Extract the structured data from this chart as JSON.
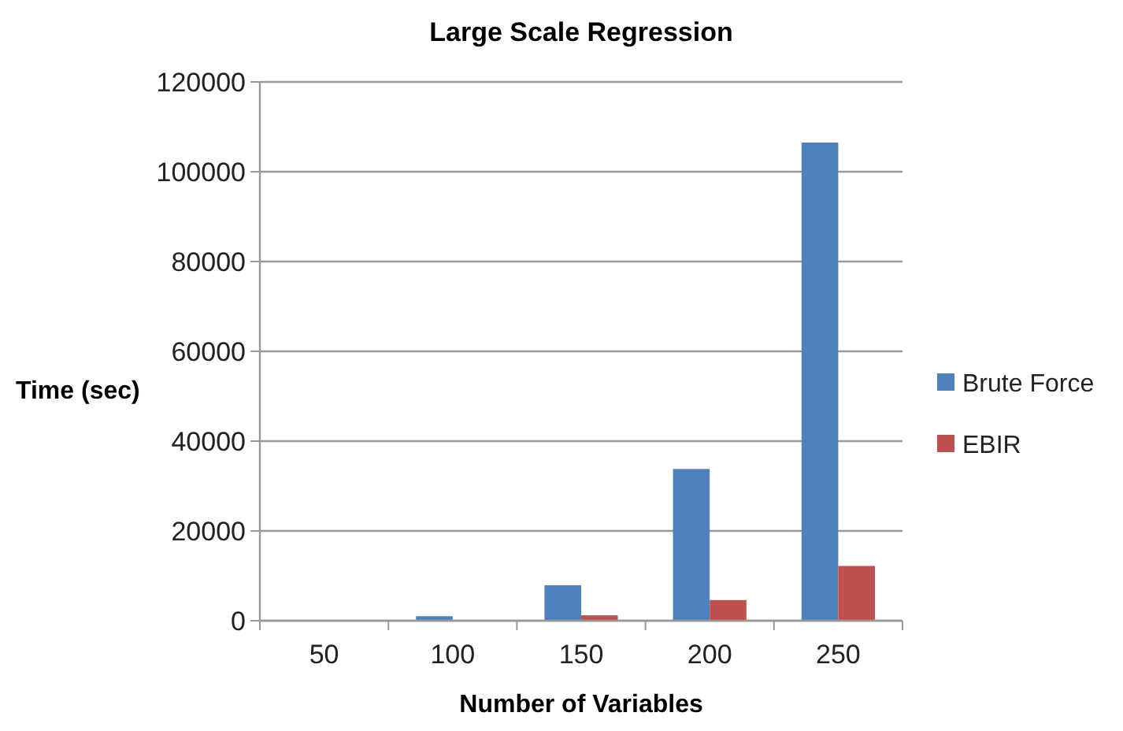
{
  "chart_data": {
    "type": "bar",
    "title": "Large Scale Regression",
    "xlabel": "Number of Variables",
    "ylabel": "Time (sec)",
    "categories": [
      "50",
      "100",
      "150",
      "200",
      "250"
    ],
    "series": [
      {
        "name": "Brute Force",
        "color": "#4f81bd",
        "values": [
          null,
          1000,
          7900,
          33800,
          106500
        ]
      },
      {
        "name": "EBIR",
        "color": "#c0504d",
        "values": [
          null,
          null,
          1200,
          4600,
          12200
        ]
      }
    ],
    "ylim": [
      0,
      120000
    ],
    "yticks": [
      0,
      20000,
      40000,
      60000,
      80000,
      100000,
      120000
    ],
    "grid": "y",
    "legend": "right"
  }
}
